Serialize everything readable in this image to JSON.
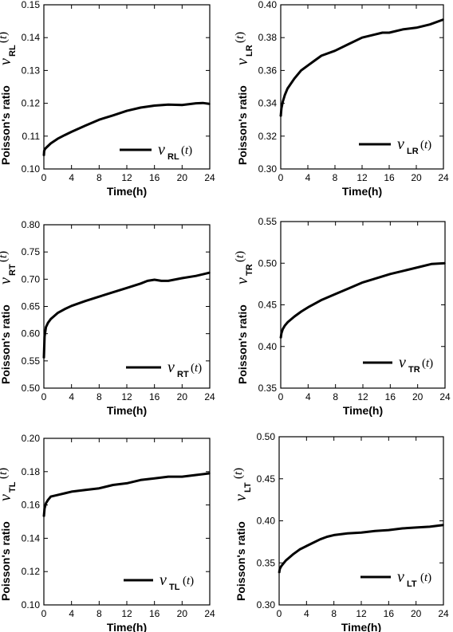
{
  "chart_data": [
    {
      "type": "line",
      "xlabel": "Time(h)",
      "ylabel": "Poisson's ratio",
      "ysymbol": {
        "greek": "ν",
        "sub": "RL",
        "arg": "t"
      },
      "xlim": [
        0,
        24
      ],
      "ylim": [
        0.1,
        0.15
      ],
      "xticks": [
        "0",
        "4",
        "8",
        "12",
        "16",
        "20",
        "24"
      ],
      "yticks": [
        "0.10",
        "0.11",
        "0.12",
        "0.13",
        "0.14",
        "0.15"
      ],
      "legend_position": "bottom-right",
      "series": [
        {
          "legend": {
            "greek": "ν",
            "sub": "RL",
            "arg": "t"
          },
          "x": [
            0,
            0.05,
            0.2,
            0.5,
            1,
            2,
            3,
            4,
            6,
            8,
            10,
            12,
            14,
            16,
            18,
            20,
            22,
            23,
            24
          ],
          "y": [
            0.104,
            0.1055,
            0.1062,
            0.1068,
            0.1078,
            0.1092,
            0.1103,
            0.1113,
            0.1132,
            0.115,
            0.1163,
            0.1177,
            0.1187,
            0.1193,
            0.1196,
            0.1195,
            0.12,
            0.1201,
            0.1198
          ]
        }
      ]
    },
    {
      "type": "line",
      "xlabel": "Time(h)",
      "ylabel": "Poisson's ratio",
      "ysymbol": {
        "greek": "ν",
        "sub": "LR",
        "arg": "t"
      },
      "xlim": [
        0,
        24
      ],
      "ylim": [
        0.3,
        0.4
      ],
      "xticks": [
        "0",
        "4",
        "8",
        "12",
        "16",
        "20",
        "24"
      ],
      "yticks": [
        "0.30",
        "0.32",
        "0.34",
        "0.36",
        "0.38",
        "0.40"
      ],
      "legend_position": "bottom-right",
      "series": [
        {
          "legend": {
            "greek": "ν",
            "sub": "LR",
            "arg": "t"
          },
          "x": [
            0,
            0.1,
            0.3,
            0.6,
            1,
            2,
            3,
            4,
            5,
            6,
            8,
            10,
            12,
            14,
            15,
            16,
            18,
            20,
            22,
            24
          ],
          "y": [
            0.332,
            0.337,
            0.341,
            0.345,
            0.349,
            0.355,
            0.36,
            0.363,
            0.366,
            0.369,
            0.372,
            0.376,
            0.38,
            0.382,
            0.383,
            0.383,
            0.385,
            0.386,
            0.388,
            0.391
          ]
        }
      ]
    },
    {
      "type": "line",
      "xlabel": "Time(h)",
      "ylabel": "Poisson's ratio",
      "ysymbol": {
        "greek": "ν",
        "sub": "RT",
        "arg": "t"
      },
      "xlim": [
        0,
        24
      ],
      "ylim": [
        0.5,
        0.8
      ],
      "xticks": [
        "0",
        "4",
        "8",
        "12",
        "16",
        "20",
        "24"
      ],
      "yticks": [
        "0.50",
        "0.55",
        "0.60",
        "0.65",
        "0.70",
        "0.75",
        "0.80"
      ],
      "legend_position": "bottom-right",
      "series": [
        {
          "legend": {
            "greek": "ν",
            "sub": "RT",
            "arg": "t"
          },
          "x": [
            0,
            0.1,
            0.3,
            0.6,
            1,
            2,
            3,
            4,
            6,
            8,
            10,
            12,
            14,
            15,
            16,
            17,
            18,
            20,
            22,
            24
          ],
          "y": [
            0.555,
            0.595,
            0.612,
            0.62,
            0.627,
            0.638,
            0.645,
            0.651,
            0.66,
            0.668,
            0.676,
            0.684,
            0.692,
            0.697,
            0.699,
            0.697,
            0.697,
            0.702,
            0.706,
            0.712
          ]
        }
      ]
    },
    {
      "type": "line",
      "xlabel": "Time(h)",
      "ylabel": "Poisson's ratio",
      "ysymbol": {
        "greek": "ν",
        "sub": "TR",
        "arg": "t"
      },
      "xlim": [
        0,
        24
      ],
      "ylim": [
        0.35,
        0.55
      ],
      "xticks": [
        "0",
        "4",
        "8",
        "12",
        "16",
        "20",
        "24"
      ],
      "yticks": [
        "0.35",
        "0.40",
        "0.45",
        "0.50",
        "0.55"
      ],
      "legend_position": "bottom-right",
      "series": [
        {
          "legend": {
            "greek": "ν",
            "sub": "TR",
            "arg": "t"
          },
          "x": [
            0,
            0.1,
            0.3,
            0.6,
            1,
            2,
            3,
            4,
            6,
            8,
            10,
            12,
            14,
            16,
            18,
            20,
            22,
            24
          ],
          "y": [
            0.41,
            0.416,
            0.421,
            0.425,
            0.429,
            0.436,
            0.442,
            0.447,
            0.456,
            0.463,
            0.47,
            0.477,
            0.482,
            0.487,
            0.491,
            0.495,
            0.499,
            0.5
          ]
        }
      ]
    },
    {
      "type": "line",
      "xlabel": "Time(h)",
      "ylabel": "Poisson's ratio",
      "ysymbol": {
        "greek": "ν",
        "sub": "TL",
        "arg": "t"
      },
      "xlim": [
        0,
        24
      ],
      "ylim": [
        0.1,
        0.2
      ],
      "xticks": [
        "0",
        "4",
        "8",
        "12",
        "16",
        "20",
        "24"
      ],
      "yticks": [
        "0.10",
        "0.12",
        "0.14",
        "0.16",
        "0.18",
        "0.20"
      ],
      "legend_position": "bottom-right",
      "series": [
        {
          "legend": {
            "greek": "ν",
            "sub": "TL",
            "arg": "t"
          },
          "x": [
            0,
            0.1,
            0.3,
            0.6,
            1,
            2,
            3,
            4,
            6,
            8,
            10,
            12,
            14,
            16,
            18,
            20,
            22,
            24
          ],
          "y": [
            0.153,
            0.158,
            0.161,
            0.163,
            0.165,
            0.166,
            0.167,
            0.168,
            0.169,
            0.17,
            0.172,
            0.173,
            0.175,
            0.176,
            0.177,
            0.177,
            0.178,
            0.179
          ]
        }
      ]
    },
    {
      "type": "line",
      "xlabel": "Time(h)",
      "ylabel": "Poisson's ratio",
      "ysymbol": {
        "greek": "ν",
        "sub": "LT",
        "arg": "t"
      },
      "xlim": [
        0,
        24
      ],
      "ylim": [
        0.3,
        0.5
      ],
      "xticks": [
        "0",
        "4",
        "8",
        "12",
        "16",
        "20",
        "24"
      ],
      "yticks": [
        "0.30",
        "0.35",
        "0.40",
        "0.45",
        "0.50"
      ],
      "legend_position": "bottom-right",
      "series": [
        {
          "legend": {
            "greek": "ν",
            "sub": "LT",
            "arg": "t"
          },
          "x": [
            0,
            0.1,
            0.3,
            0.6,
            1,
            2,
            3,
            4,
            5,
            6,
            7,
            8,
            10,
            12,
            14,
            16,
            18,
            20,
            22,
            24
          ],
          "y": [
            0.338,
            0.343,
            0.346,
            0.349,
            0.353,
            0.36,
            0.366,
            0.37,
            0.374,
            0.378,
            0.381,
            0.383,
            0.385,
            0.386,
            0.388,
            0.389,
            0.391,
            0.392,
            0.393,
            0.395
          ]
        }
      ]
    }
  ]
}
